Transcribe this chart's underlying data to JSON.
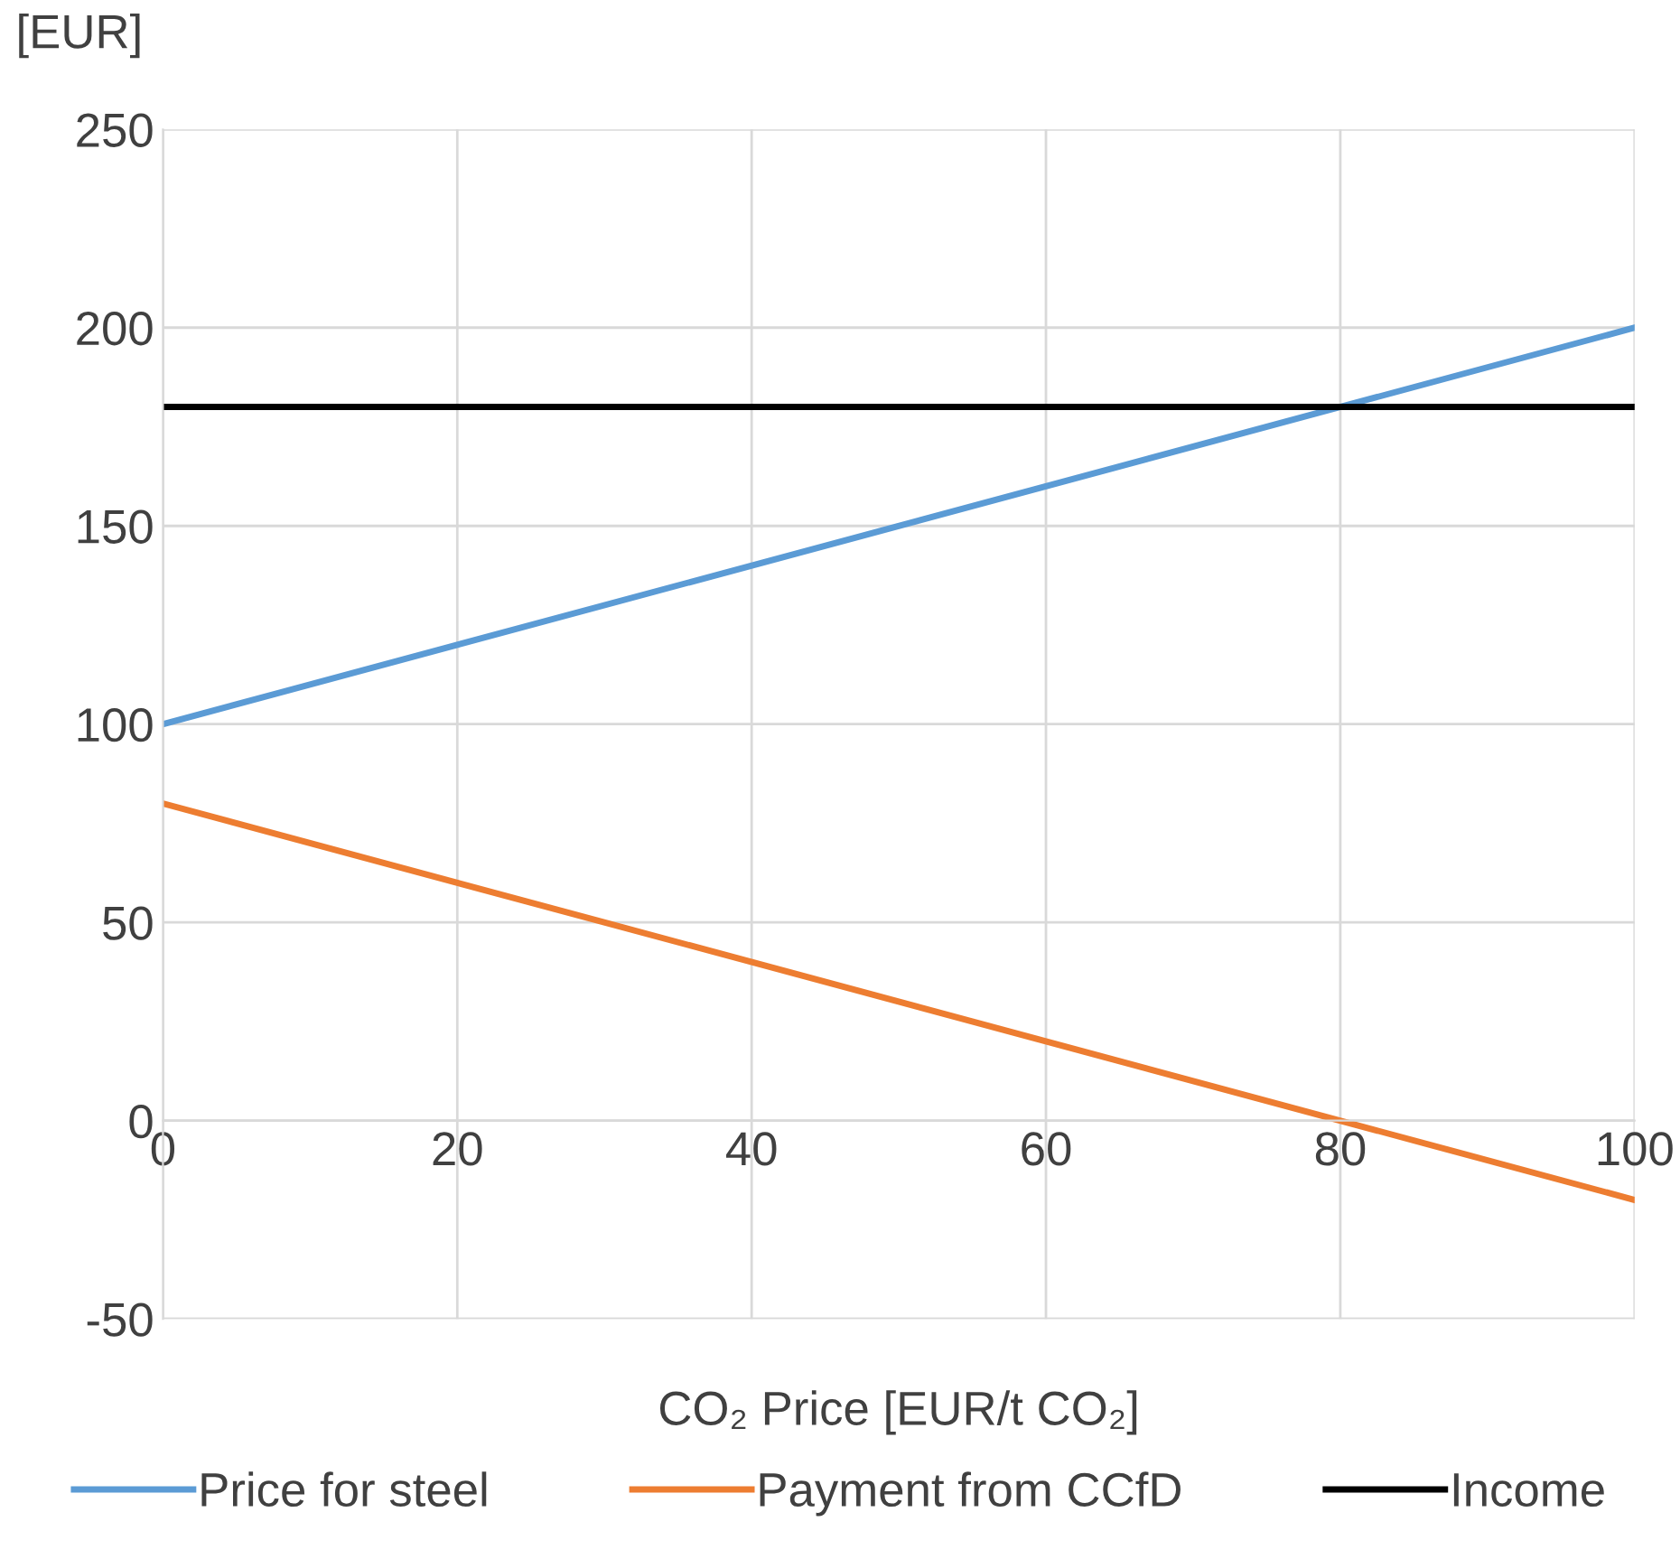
{
  "chart_data": {
    "type": "line",
    "ylabel": "[EUR]",
    "xlabel": "CO₂ Price [EUR/t CO₂]",
    "x": [
      0,
      100
    ],
    "series": [
      {
        "name": "Price for steel",
        "color": "#5b9bd5",
        "values": [
          100,
          200
        ]
      },
      {
        "name": "Payment from CCfD",
        "color": "#ed7d31",
        "values": [
          80,
          -20
        ]
      },
      {
        "name": "Income",
        "color": "#000000",
        "values": [
          180,
          180
        ]
      }
    ],
    "xlim": [
      0,
      100
    ],
    "xticks": [
      0,
      20,
      40,
      60,
      80,
      100
    ],
    "ylim": [
      -50,
      250
    ],
    "yticks": [
      -50,
      0,
      50,
      100,
      150,
      200,
      250
    ],
    "grid": true,
    "legend": "bottom",
    "marker": "none",
    "line_style": "solid"
  }
}
